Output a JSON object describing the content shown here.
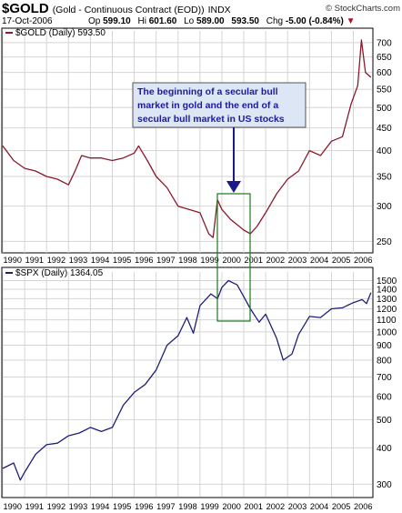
{
  "header": {
    "symbol": "$GOLD",
    "description": "(Gold - Continuous Contract (EOD))",
    "exchange": "INDX",
    "copyright": "© StockCharts.com",
    "date": "17-Oct-2006",
    "quote": {
      "op_label": "Op",
      "op_value": "599.10",
      "hi_label": "Hi",
      "hi_value": "601.60",
      "lo_label": "Lo",
      "lo_value": "589.00",
      "cl_value": "593.50",
      "chg_label": "Chg",
      "chg_value": "-5.00 (-0.84%)",
      "chg_arrow": "▼"
    }
  },
  "colors": {
    "gold": "#8b1a2c",
    "spx": "#1f1f7a",
    "grid": "#d4d4d4",
    "annotation_fill": "#dde6f5",
    "annotation_text": "#1a1aa0",
    "highlight_box": "#1a7a1a"
  },
  "annotation": {
    "lines": [
      "The beginning of a secular bull",
      "market in gold and the end of a",
      "secular bull market in US stocks"
    ]
  },
  "chart_data": [
    {
      "type": "line",
      "legend": "$GOLD (Daily) 593.50",
      "xlabel": "",
      "ylabel": "",
      "ylim": [
        240,
        730
      ],
      "yscale": "log",
      "yticks": [
        250,
        300,
        350,
        400,
        450,
        500,
        550,
        600,
        650,
        700
      ],
      "series": [
        {
          "x": [
            1990.0,
            1990.5,
            1991.0,
            1991.5,
            1992.0,
            1992.5,
            1993.0,
            1993.3,
            1993.6,
            1994.0,
            1994.5,
            1995.0,
            1995.5,
            1996.0,
            1996.2,
            1996.6,
            1997.0,
            1997.5,
            1998.0,
            1998.5,
            1999.0,
            1999.4,
            1999.6,
            1999.8,
            2000.0,
            2000.4,
            2000.8,
            2001.0,
            2001.3,
            2001.6,
            2002.0,
            2002.5,
            2003.0,
            2003.5,
            2004.0,
            2004.5,
            2005.0,
            2005.5,
            2005.9,
            2006.2,
            2006.37,
            2006.55,
            2006.8
          ],
          "y": [
            410,
            380,
            365,
            360,
            350,
            345,
            335,
            360,
            390,
            385,
            385,
            380,
            385,
            395,
            410,
            380,
            350,
            330,
            300,
            295,
            290,
            260,
            255,
            310,
            295,
            280,
            270,
            265,
            260,
            270,
            290,
            320,
            345,
            360,
            400,
            390,
            420,
            430,
            510,
            560,
            710,
            600,
            585
          ]
        }
      ]
    },
    {
      "type": "line",
      "legend": "$SPX (Daily) 1364.05",
      "xlabel": "",
      "ylabel": "",
      "ylim": [
        280,
        1560
      ],
      "yscale": "log",
      "yticks": [
        300,
        400,
        500,
        600,
        700,
        800,
        900,
        1000,
        1100,
        1200,
        1300,
        1400,
        1500
      ],
      "xticks": [
        "1990",
        "1991",
        "1992",
        "1993",
        "1994",
        "1995",
        "1996",
        "1997",
        "1998",
        "1999",
        "2000",
        "2001",
        "2002",
        "2003",
        "2004",
        "2005",
        "2006"
      ],
      "series": [
        {
          "x": [
            1990.0,
            1990.5,
            1990.8,
            1991.0,
            1991.5,
            1992.0,
            1992.5,
            1993.0,
            1993.5,
            1994.0,
            1994.5,
            1995.0,
            1995.5,
            1996.0,
            1996.5,
            1997.0,
            1997.5,
            1998.0,
            1998.4,
            1998.7,
            1999.0,
            1999.5,
            1999.8,
            2000.0,
            2000.3,
            2000.7,
            2001.0,
            2001.3,
            2001.7,
            2002.0,
            2002.5,
            2002.8,
            2003.2,
            2003.5,
            2004.0,
            2004.5,
            2005.0,
            2005.5,
            2006.0,
            2006.4,
            2006.6,
            2006.8
          ],
          "y": [
            340,
            355,
            310,
            330,
            380,
            410,
            415,
            440,
            450,
            470,
            455,
            470,
            560,
            620,
            660,
            740,
            900,
            970,
            1120,
            990,
            1230,
            1350,
            1300,
            1420,
            1500,
            1450,
            1320,
            1200,
            1080,
            1150,
            950,
            800,
            840,
            980,
            1130,
            1120,
            1200,
            1210,
            1260,
            1290,
            1250,
            1364
          ]
        }
      ]
    }
  ]
}
